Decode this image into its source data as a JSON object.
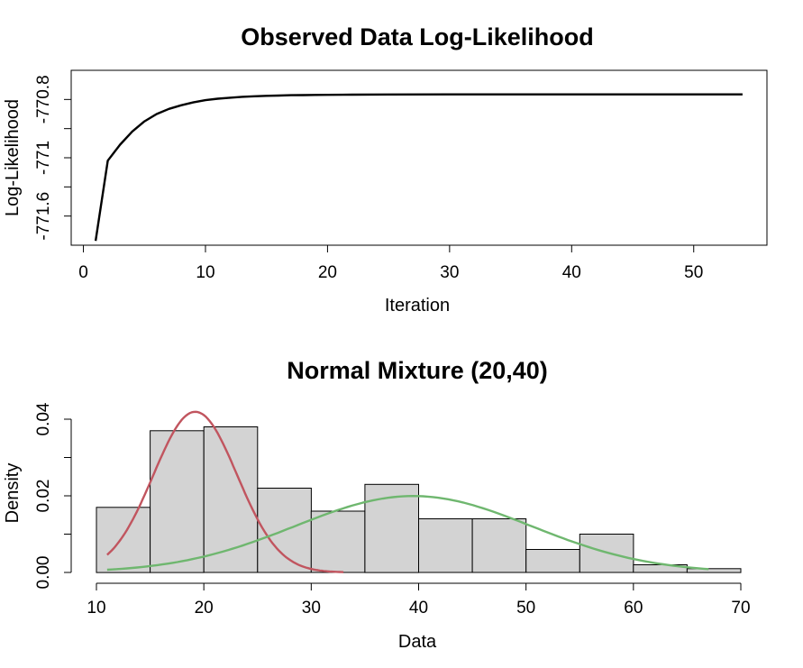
{
  "chart_data": [
    {
      "type": "line",
      "title": "Observed Data Log-Likelihood",
      "xlabel": "Iteration",
      "ylabel": "Log-Likelihood",
      "xlim": [
        -1,
        56
      ],
      "ylim": [
        -771.8,
        -770.6
      ],
      "xticks": [
        0,
        10,
        20,
        30,
        40,
        50
      ],
      "yticks": [
        -771.6,
        -771.4,
        -771.2,
        -771.0,
        -770.8
      ],
      "ytick_labels": [
        "-771.6",
        "",
        "-771",
        "",
        "-770.8"
      ],
      "grid": false,
      "colors": {
        "line": "#000000"
      },
      "series": [
        {
          "x": [
            1,
            2,
            3,
            4,
            5,
            6,
            7,
            8,
            9,
            10,
            11,
            12,
            13,
            14,
            15,
            16,
            17,
            18,
            19,
            20,
            22,
            25,
            30,
            35,
            40,
            45,
            50,
            54
          ],
          "y": [
            -771.77,
            -771.22,
            -771.11,
            -771.02,
            -770.95,
            -770.9,
            -770.865,
            -770.84,
            -770.82,
            -770.805,
            -770.795,
            -770.788,
            -770.782,
            -770.778,
            -770.775,
            -770.773,
            -770.771,
            -770.77,
            -770.769,
            -770.768,
            -770.767,
            -770.766,
            -770.765,
            -770.765,
            -770.765,
            -770.765,
            -770.765,
            -770.765
          ]
        }
      ]
    },
    {
      "type": "bar",
      "subtype": "histogram",
      "title": "Normal Mixture (20,40)",
      "xlabel": "Data",
      "ylabel": "Density",
      "xlim": [
        10,
        70
      ],
      "ylim": [
        0,
        0.044
      ],
      "xticks": [
        10,
        20,
        30,
        40,
        50,
        60,
        70
      ],
      "yticks": [
        0.0,
        0.01,
        0.02,
        0.03,
        0.04
      ],
      "ytick_labels": [
        "0.00",
        "",
        "0.02",
        "",
        "0.04"
      ],
      "grid": false,
      "bin_edges": [
        10,
        15,
        20,
        25,
        30,
        35,
        40,
        45,
        50,
        55,
        60,
        65,
        70
      ],
      "density": [
        0.017,
        0.037,
        0.038,
        0.022,
        0.016,
        0.023,
        0.014,
        0.014,
        0.006,
        0.01,
        0.002,
        0.001
      ],
      "colors": {
        "bar_fill": "#d3d3d3",
        "bar_edge": "#000000",
        "curve1": "#c1555f",
        "curve2": "#6fb76f"
      },
      "curves": [
        {
          "color": "#c1555f",
          "x_range": [
            11,
            33
          ],
          "mean": 19.2,
          "sd": 3.9,
          "weight": 0.41
        },
        {
          "color": "#6fb76f",
          "x_range": [
            11,
            67
          ],
          "mean": 39.5,
          "sd": 11.0,
          "weight": 0.55
        }
      ]
    }
  ]
}
